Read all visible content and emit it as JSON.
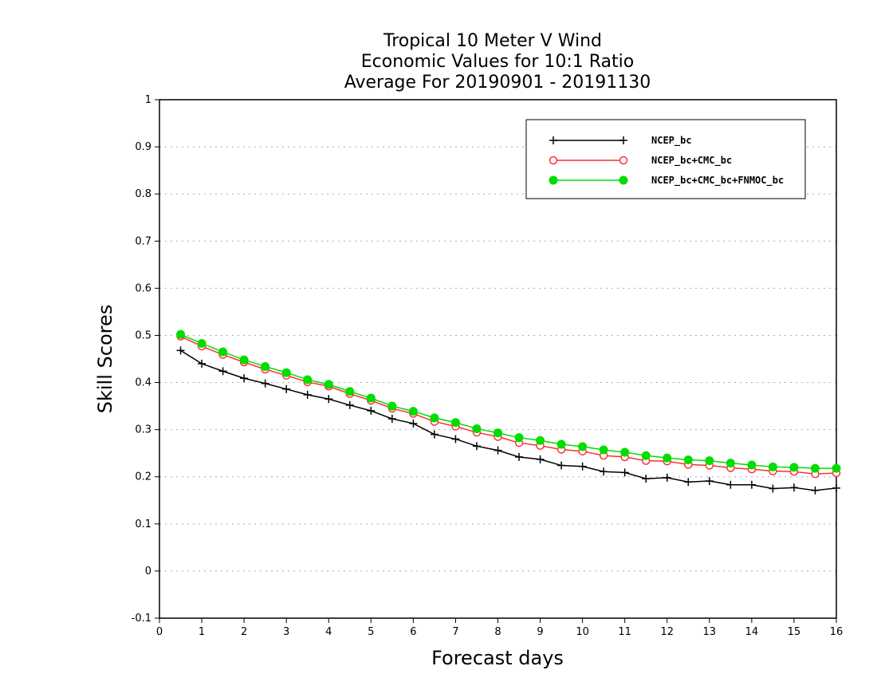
{
  "chart_data": {
    "type": "line",
    "title_lines": [
      "Tropical 10 Meter V Wind",
      "Economic Values for 10:1 Ratio",
      "Average For 20190901 - 20191130"
    ],
    "xlabel": "Forecast days",
    "ylabel": "Skill Scores",
    "xlim": [
      0,
      16
    ],
    "ylim": [
      -0.1,
      1
    ],
    "xticks": [
      "0",
      "1",
      "2",
      "3",
      "4",
      "5",
      "6",
      "7",
      "8",
      "9",
      "10",
      "11",
      "12",
      "13",
      "14",
      "15",
      "16"
    ],
    "yticks": [
      "-0.1",
      "0",
      "0.1",
      "0.2",
      "0.3",
      "0.4",
      "0.5",
      "0.6",
      "0.7",
      "0.8",
      "0.9",
      "1"
    ],
    "grid": "horizontal dotted",
    "legend_position": "top-right",
    "x": [
      0.5,
      1,
      1.5,
      2,
      2.5,
      3,
      3.5,
      4,
      4.5,
      5,
      5.5,
      6,
      6.5,
      7,
      7.5,
      8,
      8.5,
      9,
      9.5,
      10,
      10.5,
      11,
      11.5,
      12,
      12.5,
      13,
      13.5,
      14,
      14.5,
      15,
      15.5,
      16
    ],
    "series": [
      {
        "name": "NCEP_bc",
        "color": "#000000",
        "marker": "plus",
        "values": [
          0.468,
          0.44,
          0.424,
          0.409,
          0.398,
          0.386,
          0.374,
          0.365,
          0.352,
          0.34,
          0.323,
          0.313,
          0.29,
          0.28,
          0.265,
          0.256,
          0.242,
          0.237,
          0.224,
          0.222,
          0.211,
          0.209,
          0.196,
          0.198,
          0.189,
          0.191,
          0.183,
          0.183,
          0.175,
          0.177,
          0.171,
          0.176
        ]
      },
      {
        "name": "NCEP_bc+CMC_bc",
        "color": "#ff3030",
        "marker": "open-circle",
        "values": [
          0.498,
          0.477,
          0.459,
          0.443,
          0.428,
          0.415,
          0.401,
          0.392,
          0.376,
          0.362,
          0.345,
          0.334,
          0.317,
          0.307,
          0.294,
          0.285,
          0.272,
          0.266,
          0.258,
          0.254,
          0.245,
          0.242,
          0.234,
          0.233,
          0.226,
          0.224,
          0.219,
          0.216,
          0.212,
          0.211,
          0.206,
          0.208
        ]
      },
      {
        "name": "NCEP_bc+CMC_bc+FNMOC_bc",
        "color": "#00dd00",
        "marker": "filled-circle",
        "values": [
          0.502,
          0.483,
          0.465,
          0.448,
          0.434,
          0.421,
          0.406,
          0.396,
          0.381,
          0.367,
          0.35,
          0.339,
          0.325,
          0.315,
          0.302,
          0.293,
          0.283,
          0.277,
          0.269,
          0.264,
          0.257,
          0.252,
          0.245,
          0.24,
          0.236,
          0.234,
          0.229,
          0.225,
          0.221,
          0.22,
          0.218,
          0.218
        ]
      }
    ]
  }
}
